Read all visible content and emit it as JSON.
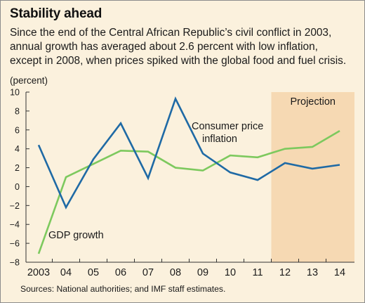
{
  "title": "Stability ahead",
  "subtitle": "Since the end of the Central African Republic’s civil conflict in 2003,\nannual growth has averaged about 2.6 percent with low inflation,\nexcept in 2008, when prices spiked with the global food and fuel crisis.",
  "unit": "(percent)",
  "source": "Sources: National authorities; and IMF staff estimates.",
  "colors": {
    "background": "#fbf1dd",
    "projection_band": "#f6d9b3",
    "gdp_series": "#7dc95e",
    "cpi_series": "#1f6aa5"
  },
  "chart_data": {
    "type": "line",
    "title": "",
    "xlabel": "",
    "ylabel": "(percent)",
    "categories": [
      "2003",
      "04",
      "05",
      "06",
      "07",
      "08",
      "09",
      "10",
      "11",
      "12",
      "13",
      "14"
    ],
    "ylim": [
      -8,
      10
    ],
    "yticks": [
      10,
      8,
      6,
      4,
      2,
      0,
      -2,
      -4,
      -6,
      -8
    ],
    "grid": false,
    "projection_label": "Projection",
    "projection_from": "11",
    "projection_to": "14",
    "series": [
      {
        "name": "GDP growth",
        "values": [
          -7.1,
          1.0,
          2.4,
          3.8,
          3.7,
          2.0,
          1.7,
          3.3,
          3.1,
          4.0,
          4.2,
          5.9
        ]
      },
      {
        "name": "Consumer price inflation",
        "values": [
          4.4,
          -2.2,
          2.9,
          6.7,
          0.9,
          9.3,
          3.5,
          1.5,
          0.7,
          2.5,
          1.9,
          2.3
        ]
      }
    ],
    "annotations": {
      "cpi_line1": "Consumer price",
      "cpi_line2": "inflation",
      "gdp": "GDP growth"
    }
  }
}
